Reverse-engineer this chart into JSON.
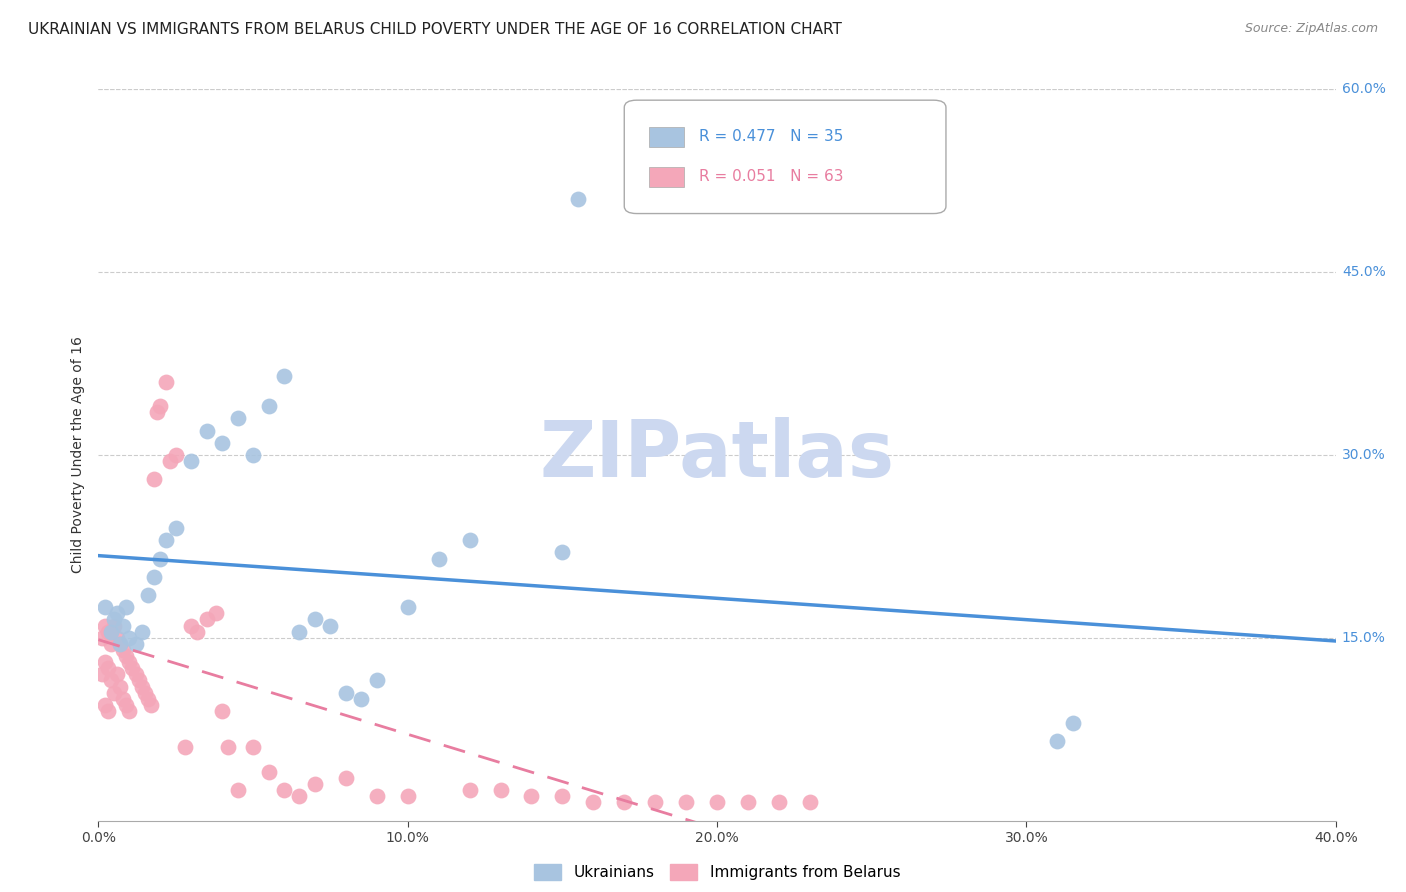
{
  "title": "UKRAINIAN VS IMMIGRANTS FROM BELARUS CHILD POVERTY UNDER THE AGE OF 16 CORRELATION CHART",
  "source": "Source: ZipAtlas.com",
  "ylabel": "Child Poverty Under the Age of 16",
  "xlim": [
    0.0,
    0.4
  ],
  "ylim": [
    0.0,
    0.6
  ],
  "xticks": [
    0.0,
    0.1,
    0.2,
    0.3,
    0.4
  ],
  "yticks": [
    0.15,
    0.3,
    0.45,
    0.6
  ],
  "xtick_labels": [
    "0.0%",
    "10.0%",
    "20.0%",
    "30.0%",
    "40.0%"
  ],
  "right_ytick_labels": [
    "60.0%",
    "45.0%",
    "30.0%",
    "15.0%"
  ],
  "right_ytick_vals": [
    0.6,
    0.45,
    0.3,
    0.15
  ],
  "ukr_R": "0.477",
  "ukr_N": "35",
  "bel_R": "0.051",
  "bel_N": "63",
  "ukrainians_x": [
    0.002,
    0.004,
    0.005,
    0.006,
    0.007,
    0.008,
    0.009,
    0.01,
    0.012,
    0.014,
    0.016,
    0.018,
    0.02,
    0.022,
    0.025,
    0.03,
    0.035,
    0.04,
    0.045,
    0.05,
    0.055,
    0.06,
    0.065,
    0.07,
    0.075,
    0.08,
    0.085,
    0.09,
    0.1,
    0.11,
    0.12,
    0.15,
    0.155,
    0.31,
    0.315
  ],
  "ukrainians_y": [
    0.175,
    0.155,
    0.165,
    0.17,
    0.145,
    0.16,
    0.175,
    0.15,
    0.145,
    0.155,
    0.185,
    0.2,
    0.215,
    0.23,
    0.24,
    0.295,
    0.32,
    0.31,
    0.33,
    0.3,
    0.34,
    0.365,
    0.155,
    0.165,
    0.16,
    0.105,
    0.1,
    0.115,
    0.175,
    0.215,
    0.23,
    0.22,
    0.51,
    0.065,
    0.08
  ],
  "belarus_x": [
    0.001,
    0.001,
    0.002,
    0.002,
    0.002,
    0.003,
    0.003,
    0.003,
    0.004,
    0.004,
    0.005,
    0.005,
    0.006,
    0.006,
    0.007,
    0.007,
    0.008,
    0.008,
    0.009,
    0.009,
    0.01,
    0.01,
    0.011,
    0.012,
    0.013,
    0.014,
    0.015,
    0.016,
    0.017,
    0.018,
    0.019,
    0.02,
    0.022,
    0.023,
    0.025,
    0.028,
    0.03,
    0.032,
    0.035,
    0.038,
    0.04,
    0.042,
    0.045,
    0.05,
    0.055,
    0.06,
    0.065,
    0.07,
    0.08,
    0.09,
    0.1,
    0.12,
    0.13,
    0.14,
    0.15,
    0.16,
    0.17,
    0.18,
    0.19,
    0.2,
    0.21,
    0.22,
    0.23
  ],
  "belarus_y": [
    0.15,
    0.12,
    0.16,
    0.13,
    0.095,
    0.155,
    0.125,
    0.09,
    0.145,
    0.115,
    0.16,
    0.105,
    0.15,
    0.12,
    0.145,
    0.11,
    0.14,
    0.1,
    0.135,
    0.095,
    0.13,
    0.09,
    0.125,
    0.12,
    0.115,
    0.11,
    0.105,
    0.1,
    0.095,
    0.28,
    0.335,
    0.34,
    0.36,
    0.295,
    0.3,
    0.06,
    0.16,
    0.155,
    0.165,
    0.17,
    0.09,
    0.06,
    0.025,
    0.06,
    0.04,
    0.025,
    0.02,
    0.03,
    0.035,
    0.02,
    0.02,
    0.025,
    0.025,
    0.02,
    0.02,
    0.015,
    0.015,
    0.015,
    0.015,
    0.015,
    0.015,
    0.015,
    0.015
  ],
  "ukr_line_color": "#4a90d9",
  "bel_line_color": "#e87da0",
  "ukr_scatter_color": "#a8c4e0",
  "bel_scatter_color": "#f4a7b9",
  "watermark": "ZIPatlas",
  "watermark_color": "#ccd8f0",
  "grid_color": "#cccccc",
  "title_fontsize": 11,
  "axis_label_fontsize": 10,
  "tick_fontsize": 10,
  "source_fontsize": 9
}
